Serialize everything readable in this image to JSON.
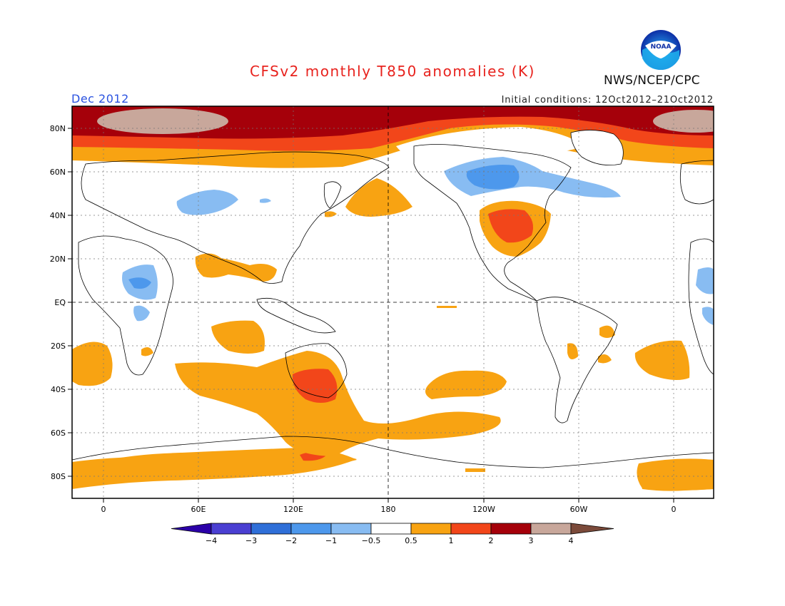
{
  "header": {
    "title": "CFSv2 monthly T850 anomalies (K)",
    "month": "Dec 2012",
    "initial_conditions": "Initial conditions: 12Oct2012–21Oct2012",
    "org": "NWS/NCEP/CPC",
    "logo_text": "NOAA"
  },
  "axes": {
    "lat_labels": [
      "80N",
      "60N",
      "40N",
      "20N",
      "EQ",
      "20S",
      "40S",
      "60S",
      "80S"
    ],
    "lon_labels": [
      "0",
      "60E",
      "120E",
      "180",
      "120W",
      "60W",
      "0"
    ]
  },
  "colorbar": {
    "labels": [
      "−4",
      "−3",
      "−2",
      "−1",
      "−0.5",
      "0.5",
      "1",
      "2",
      "3",
      "4"
    ],
    "colors": [
      "#2b00a8",
      "#4a3fd2",
      "#2f6fd8",
      "#4d98ec",
      "#88bcf2",
      "#ffffff",
      "#f8a312",
      "#f2461a",
      "#a5000a",
      "#c8a79b",
      "#7b4a3a"
    ]
  },
  "colors": {
    "cold_1": "#88bcf2",
    "cold_2": "#4d98ec",
    "warm_1": "#f8a312",
    "warm_2": "#f2461a",
    "warm_3": "#a5000a",
    "warm_4": "#c8a79b",
    "title": "#e8231e",
    "month": "#2a52e0"
  }
}
